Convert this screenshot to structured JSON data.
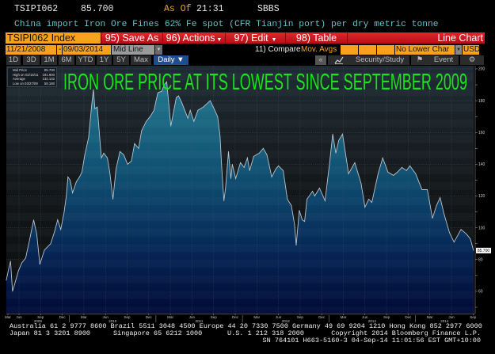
{
  "header": {
    "ticker": "TSIPI062",
    "price": "85.700",
    "as_of_label": "As Of",
    "time": "21:31",
    "source": "SBBS",
    "description": "China import Iron Ore Fines 62% Fe spot (CFR Tianjin port) per dry metric tonne"
  },
  "toolbar": {
    "security": "TSIPI062 Index",
    "save_as": "95) Save As",
    "actions": "96) Actions",
    "edit": "97) Edit",
    "table": "98) Table",
    "chart_type": "Line Chart",
    "start_date": "11/21/2008",
    "date_sep": "-",
    "end_date": "09/03/2014",
    "price_type": "Mid Line",
    "compare": "11) Compare",
    "mov_avgs": "Mov. Avgs",
    "lower_chart": "No Lower Char",
    "currency": "USD",
    "ranges": [
      "1D",
      "3D",
      "1M",
      "6M",
      "YTD",
      "1Y",
      "5Y",
      "Max"
    ],
    "frequency": "Daily",
    "collapse": "«",
    "security_study": "Security/Study",
    "event": "Event"
  },
  "legend": {
    "items": [
      {
        "label": "Mid Price",
        "value": "85.700"
      },
      {
        "label": "High on 02/16/11",
        "value": "191.900"
      },
      {
        "label": "Average",
        "value": "132.132"
      },
      {
        "label": "Low on 03/27/09",
        "value": "59.180"
      }
    ]
  },
  "colors": {
    "accent_orange": "#f7a21b",
    "bar_red": "#d41c22",
    "title_green": "#19e619",
    "line": "#b9c4cc"
  },
  "chart_data": {
    "type": "line",
    "title": "IRON ORE PRICE AT ITS LOWEST SINCE SEPTEMBER 2009",
    "ylim": [
      46,
      202
    ],
    "y_ticks": [
      60,
      80,
      100,
      120,
      140,
      160,
      180,
      200
    ],
    "last_value_label": "85.700",
    "grid": true,
    "x_tick_labels": [
      {
        "label": "Mar",
        "date": "2009-04-15"
      },
      {
        "label": "Jun",
        "date": "2009-06-01"
      },
      {
        "label": "Sep",
        "date": "2009-09-01"
      },
      {
        "label": "Dec",
        "date": "2009-12-01"
      },
      {
        "label": "Mar",
        "date": "2010-03-01"
      },
      {
        "label": "Jun",
        "date": "2010-06-01"
      },
      {
        "label": "Sep",
        "date": "2010-09-01"
      },
      {
        "label": "Dec",
        "date": "2010-12-01"
      },
      {
        "label": "Mar",
        "date": "2011-03-01"
      },
      {
        "label": "Jun",
        "date": "2011-06-01"
      },
      {
        "label": "Sep",
        "date": "2011-09-01"
      },
      {
        "label": "Dec",
        "date": "2011-12-01"
      },
      {
        "label": "Mar",
        "date": "2012-03-01"
      },
      {
        "label": "Jun",
        "date": "2012-06-01"
      },
      {
        "label": "Sep",
        "date": "2012-09-01"
      },
      {
        "label": "Dec",
        "date": "2012-12-01"
      },
      {
        "label": "Mar",
        "date": "2013-03-01"
      },
      {
        "label": "Jun",
        "date": "2013-06-01"
      },
      {
        "label": "Sep",
        "date": "2013-09-01"
      },
      {
        "label": "Dec",
        "date": "2013-12-01"
      },
      {
        "label": "Mar",
        "date": "2014-03-01"
      },
      {
        "label": "Jun",
        "date": "2014-06-01"
      },
      {
        "label": "Sep",
        "date": "2014-09-01"
      }
    ],
    "year_labels": [
      "2009",
      "2010",
      "2011",
      "2012",
      "2013",
      "2014"
    ],
    "series": [
      {
        "x": [
          "2009-04-08",
          "2009-04-18",
          "2009-04-26",
          "2009-05-04",
          "2009-05-12",
          "2009-05-29",
          "2009-06-13",
          "2009-06-29",
          "2009-07-16",
          "2009-08-02",
          "2009-08-15",
          "2009-08-28",
          "2009-09-17",
          "2009-10-13",
          "2009-10-30",
          "2009-11-12",
          "2009-11-25",
          "2009-12-08",
          "2009-12-18",
          "2009-12-25",
          "2010-01-04",
          "2010-01-14",
          "2010-01-30",
          "2010-02-13",
          "2010-02-23",
          "2010-03-05",
          "2010-03-21",
          "2010-04-04",
          "2010-04-11",
          "2010-04-17",
          "2010-04-27",
          "2010-05-14",
          "2010-05-24",
          "2010-06-09",
          "2010-06-19",
          "2010-07-02",
          "2010-07-15",
          "2010-08-01",
          "2010-08-17",
          "2010-09-03",
          "2010-09-19",
          "2010-10-02",
          "2010-10-19",
          "2010-11-01",
          "2010-11-21",
          "2010-12-07",
          "2010-12-23",
          "2011-01-09",
          "2011-01-26",
          "2011-02-05",
          "2011-02-16",
          "2011-03-03",
          "2011-03-26",
          "2011-04-05",
          "2011-04-18",
          "2011-05-14",
          "2011-05-24",
          "2011-06-09",
          "2011-06-26",
          "2011-07-18",
          "2011-08-17",
          "2011-08-30",
          "2011-09-18",
          "2011-09-28",
          "2011-10-04",
          "2011-10-14",
          "2011-10-21",
          "2011-11-03",
          "2011-11-13",
          "2011-11-19",
          "2011-12-03",
          "2011-12-23",
          "2012-01-08",
          "2012-01-22",
          "2012-02-01",
          "2012-02-18",
          "2012-03-11",
          "2012-03-28",
          "2012-04-13",
          "2012-05-03",
          "2012-05-20",
          "2012-06-01",
          "2012-06-21",
          "2012-07-08",
          "2012-07-25",
          "2012-08-08",
          "2012-08-15",
          "2012-08-28",
          "2012-09-10",
          "2012-09-20",
          "2012-09-30",
          "2012-10-23",
          "2012-11-02",
          "2012-11-22",
          "2012-12-15",
          "2013-01-04",
          "2013-01-17",
          "2013-01-30",
          "2013-02-12",
          "2013-02-28",
          "2013-03-10",
          "2013-03-23",
          "2013-04-19",
          "2013-05-15",
          "2013-06-01",
          "2013-06-17",
          "2013-06-30",
          "2013-07-26",
          "2013-08-15",
          "2013-09-07",
          "2013-09-30",
          "2013-10-16",
          "2013-11-05",
          "2013-11-24",
          "2013-12-08",
          "2014-01-02",
          "2014-01-29",
          "2014-02-21",
          "2014-03-12",
          "2014-03-29",
          "2014-04-14",
          "2014-04-30",
          "2014-05-23",
          "2014-06-12",
          "2014-07-11",
          "2014-08-04",
          "2014-08-20",
          "2014-09-03"
        ],
        "values": [
          67,
          74,
          79,
          60,
          64,
          73,
          78,
          81,
          93,
          105,
          96,
          77,
          86,
          90,
          98,
          105,
          99,
          109,
          120,
          132,
          130,
          122,
          129,
          132,
          135,
          146,
          157,
          178,
          187,
          175,
          176,
          144,
          147,
          144,
          135,
          118,
          137,
          148,
          146,
          140,
          142,
          153,
          150,
          161,
          167,
          170,
          174,
          185,
          186,
          190,
          191.9,
          164,
          182,
          183,
          179,
          169,
          174,
          167,
          174,
          176,
          180,
          176,
          170,
          158,
          140,
          117,
          125,
          148,
          131,
          140,
          131,
          141,
          138,
          144,
          136,
          145,
          147,
          150,
          146,
          132,
          137,
          139,
          136,
          118,
          114,
          102,
          89,
          111,
          105,
          104,
          118,
          123,
          120,
          125,
          117,
          141,
          159,
          147,
          155,
          159,
          147,
          134,
          141,
          128,
          113,
          118,
          116,
          134,
          144,
          135,
          133,
          135,
          138,
          136,
          139,
          134,
          124,
          124,
          106,
          114,
          119,
          109,
          97,
          91,
          99,
          96,
          93,
          85.7
        ]
      }
    ]
  },
  "footer": {
    "line1": "Australia 61 2 9777 8600 Brazil 5511 3048 4500 Europe 44 20 7330 7500 Germany 49 69 9204 1210 Hong Kong 852 2977 6000",
    "japan": "Japan 81 3 3201 8900",
    "singapore": "Singapore 65 6212 1000",
    "us": "U.S. 1 212 318 2000",
    "copyright": "Copyright 2014 Bloomberg Finance L.P.",
    "line3": "SN 764101 H663-5160-3 04-Sep-14 11:01:56 EST  GMT+10:00"
  }
}
